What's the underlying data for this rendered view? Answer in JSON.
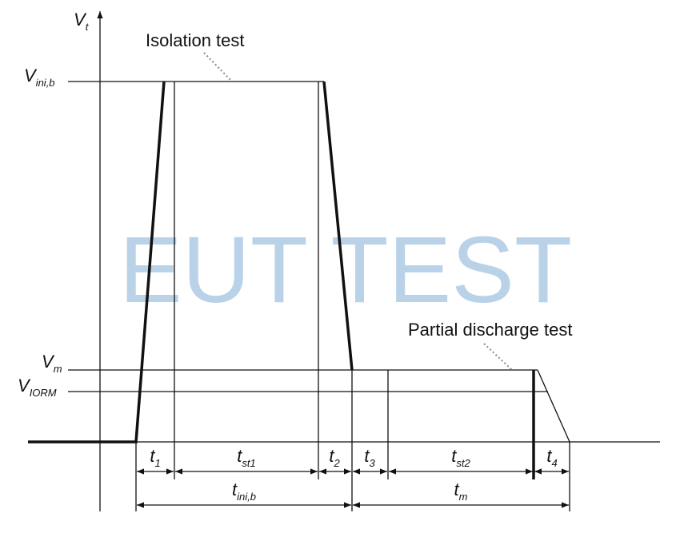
{
  "watermark": "EUT TEST",
  "axis": {
    "y_label": {
      "main": "V",
      "sub": "t"
    }
  },
  "annotations": {
    "isolation": "Isolation test",
    "partial": "Partial discharge test"
  },
  "levels": [
    {
      "main": "V",
      "sub": "ini,b"
    },
    {
      "main": "V",
      "sub": "m"
    },
    {
      "main": "V",
      "sub": "IORM"
    }
  ],
  "intervals": [
    {
      "main": "t",
      "sub": "1"
    },
    {
      "main": "t",
      "sub": "st1"
    },
    {
      "main": "t",
      "sub": "2"
    },
    {
      "main": "t",
      "sub": "3"
    },
    {
      "main": "t",
      "sub": "st2"
    },
    {
      "main": "t",
      "sub": "4"
    }
  ],
  "totals": [
    {
      "main": "t",
      "sub": "ini,b"
    },
    {
      "main": "t",
      "sub": "m"
    }
  ]
}
